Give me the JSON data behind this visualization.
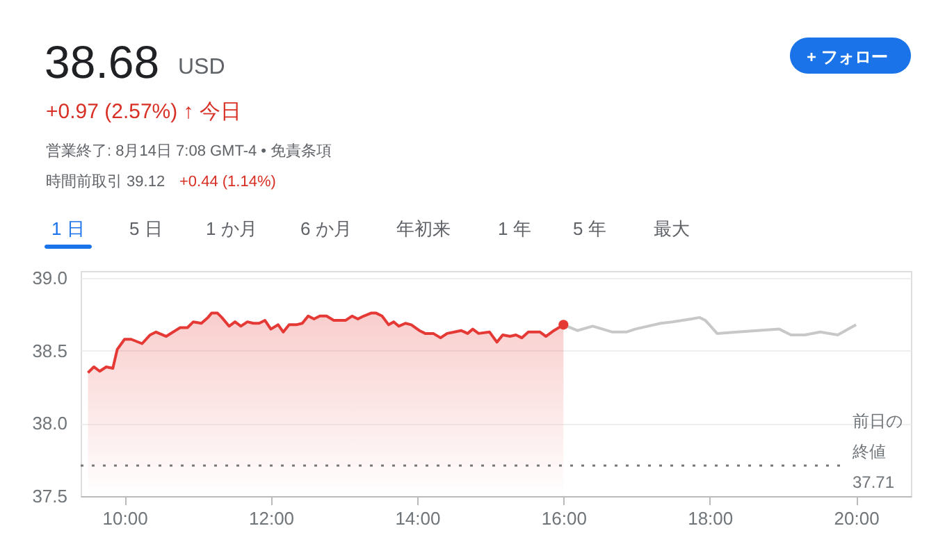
{
  "chart_data": {
    "type": "area",
    "title": "38.68",
    "annotations": [
      "USD",
      "+0.97 (2.57%) ↑ 今日",
      "営業終了: 8月14日 7:08 GMT-4 • 免責条項",
      "時間前取引 39.12",
      "+0.44 (1.14%)",
      "1 日",
      "5 日",
      "1 か月",
      "6 か月",
      "年初来",
      "1 年",
      "5 年",
      "最大",
      "+ フォロー",
      "37.71"
    ],
    "series": [
      {
        "color": "#e53935",
        "x": [
          9.5,
          9.58,
          9.66,
          9.75,
          9.84,
          9.9,
          10.0,
          10.09,
          10.24,
          10.35,
          10.43,
          10.57,
          10.76,
          10.86,
          10.94,
          11.05,
          11.14,
          11.19,
          11.27,
          11.33,
          11.43,
          11.51,
          11.59,
          11.68,
          11.76,
          11.84,
          11.92,
          12.0,
          12.1,
          12.17,
          12.25,
          12.35,
          12.43,
          12.51,
          12.59,
          12.67,
          12.76,
          12.86,
          13.02,
          13.11,
          13.19,
          13.27,
          13.37,
          13.44,
          13.52,
          13.61,
          13.68,
          13.75,
          13.84,
          13.92,
          14.03,
          14.11,
          14.22,
          14.32,
          14.41,
          14.51,
          14.6,
          14.69,
          14.76,
          14.84,
          14.99,
          15.09,
          15.17,
          15.27,
          15.35,
          15.43,
          15.52,
          15.68,
          15.76,
          15.87,
          16.0
        ],
        "values": [
          38.35,
          38.39,
          38.36,
          38.39,
          38.38,
          38.51,
          38.58,
          38.58,
          38.55,
          38.61,
          38.63,
          38.6,
          38.66,
          38.66,
          38.7,
          38.69,
          38.73,
          38.76,
          38.76,
          38.73,
          38.67,
          38.7,
          38.67,
          38.7,
          38.69,
          38.69,
          38.71,
          38.65,
          38.68,
          38.63,
          38.68,
          38.68,
          38.69,
          38.74,
          38.72,
          38.74,
          38.74,
          38.71,
          38.71,
          38.74,
          38.72,
          38.74,
          38.76,
          38.76,
          38.74,
          38.68,
          38.7,
          38.67,
          38.69,
          38.68,
          38.64,
          38.62,
          38.62,
          38.59,
          38.62,
          38.63,
          38.64,
          38.62,
          38.65,
          38.62,
          38.63,
          38.56,
          38.61,
          38.6,
          38.61,
          38.59,
          38.63,
          38.63,
          38.6,
          38.64,
          38.68
        ]
      },
      {
        "type": "line",
        "color": "#c8c8c8",
        "x": [
          16.0,
          16.19,
          16.4,
          16.67,
          16.86,
          16.98,
          17.33,
          17.49,
          17.75,
          17.86,
          17.94,
          18.1,
          18.38,
          18.95,
          19.11,
          19.3,
          19.51,
          19.75,
          20.0
        ],
        "values": [
          38.68,
          38.64,
          38.67,
          38.63,
          38.63,
          38.65,
          38.69,
          38.7,
          38.72,
          38.73,
          38.71,
          38.62,
          38.63,
          38.65,
          38.61,
          38.61,
          38.63,
          38.61,
          38.68
        ]
      },
      {
        "type": "scatter",
        "color": "#e53935",
        "x": [
          16.0
        ],
        "values": [
          38.68
        ]
      }
    ],
    "xlim": [
      9.4,
      20.75
    ],
    "xticks": [
      {
        "value": 10,
        "label": "10:00"
      },
      {
        "value": 12,
        "label": "12:00"
      },
      {
        "value": 14,
        "label": "14:00"
      },
      {
        "value": 16,
        "label": "16:00"
      },
      {
        "value": 18,
        "label": "18:00"
      },
      {
        "value": 20,
        "label": "20:00"
      }
    ],
    "ylim": [
      37.5,
      39.05
    ],
    "yticks": [
      {
        "value": 37.5,
        "label": "37.5"
      },
      {
        "value": 38,
        "label": "38.0"
      },
      {
        "value": 38.5,
        "label": "38.5"
      },
      {
        "value": 39,
        "label": "39.0"
      }
    ],
    "ref_lines": [
      {
        "axis": "y",
        "value": 37.71,
        "label": "前日の終値",
        "color": "#777777",
        "line_style": "dotted"
      }
    ],
    "grid": "y"
  }
}
